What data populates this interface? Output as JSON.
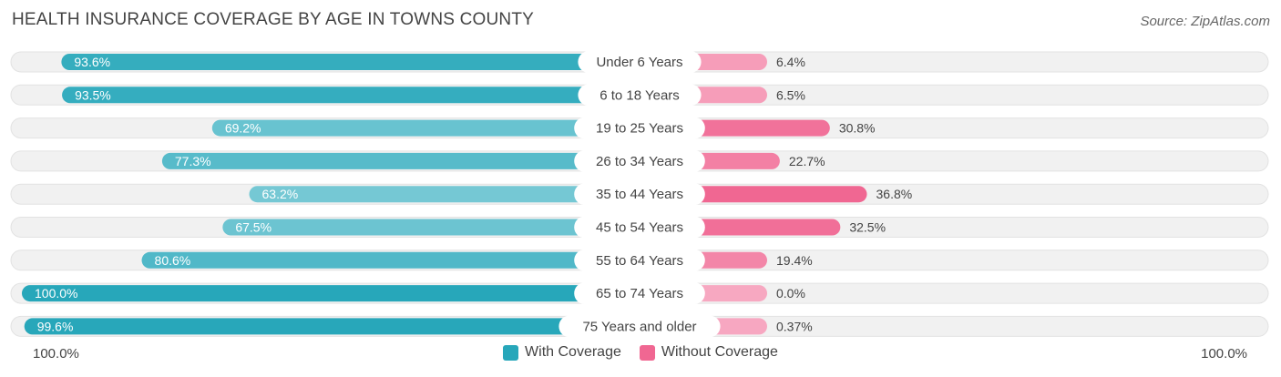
{
  "header": {
    "title": "HEALTH INSURANCE COVERAGE BY AGE IN TOWNS COUNTY",
    "source": "Source: ZipAtlas.com"
  },
  "axis": {
    "left_label": "100.0%",
    "right_label": "100.0%"
  },
  "legend": {
    "with_label": "With Coverage",
    "without_label": "Without Coverage"
  },
  "colors": {
    "with_strong": "#27a7ba",
    "with_light": "#7ccbd6",
    "without_strong": "#f06792",
    "without_light": "#f7a8c1",
    "track": "#f0f0f0"
  },
  "chart_data": {
    "type": "bar",
    "orientation": "diverging-horizontal",
    "title": "HEALTH INSURANCE COVERAGE BY AGE IN TOWNS COUNTY",
    "categories": [
      "Under 6 Years",
      "6 to 18 Years",
      "19 to 25 Years",
      "26 to 34 Years",
      "35 to 44 Years",
      "45 to 54 Years",
      "55 to 64 Years",
      "65 to 74 Years",
      "75 Years and older"
    ],
    "series": [
      {
        "name": "With Coverage",
        "values": [
          93.6,
          93.5,
          69.2,
          77.3,
          63.2,
          67.5,
          80.6,
          100.0,
          99.6
        ],
        "labels": [
          "93.6%",
          "93.5%",
          "69.2%",
          "77.3%",
          "63.2%",
          "67.5%",
          "80.6%",
          "100.0%",
          "99.6%"
        ]
      },
      {
        "name": "Without Coverage",
        "values": [
          6.4,
          6.5,
          30.8,
          22.7,
          36.8,
          32.5,
          19.4,
          0.0,
          0.37
        ],
        "labels": [
          "6.4%",
          "6.5%",
          "30.8%",
          "22.7%",
          "36.8%",
          "32.5%",
          "19.4%",
          "0.0%",
          "0.37%"
        ]
      }
    ],
    "xlim": [
      -100,
      100
    ],
    "legend_position": "bottom-center"
  }
}
